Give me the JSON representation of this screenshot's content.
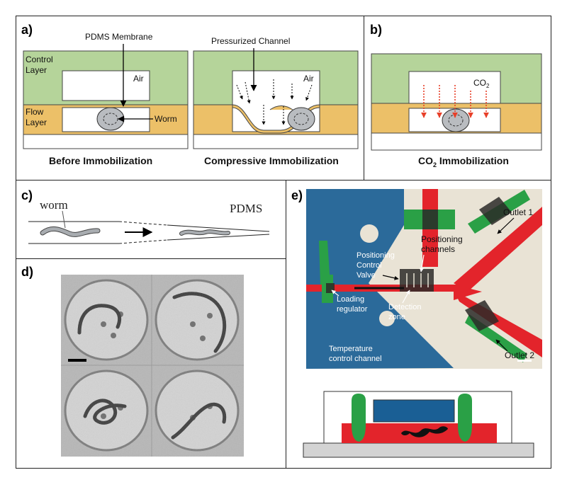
{
  "panels": {
    "a": {
      "label": "a)",
      "pdms_membrane": "PDMS Membrane",
      "control_layer": [
        "Control",
        "Layer"
      ],
      "flow_layer": [
        "Flow",
        "Layer"
      ],
      "air": "Air",
      "worm": "Worm",
      "pressurized_channel": "Pressurized Channel",
      "caption_left": "Before Immobilization",
      "caption_right": "Compressive Immobilization"
    },
    "b": {
      "label": "b)",
      "co2": "CO",
      "co2_sub": "2",
      "caption_main": "CO",
      "caption_sub": "2",
      "caption_rest": " Immobilization"
    },
    "c": {
      "label": "c)",
      "worm": "worm",
      "pdms": "PDMS"
    },
    "d": {
      "label": "d)"
    },
    "e": {
      "label": "e)",
      "outlet1": "Outlet 1",
      "outlet2": "Outlet 2",
      "positioning_channels": [
        "Positioning",
        "channels"
      ],
      "positioning_control_valve": [
        "Positioning",
        "Control",
        "Valve"
      ],
      "loading_regulator": [
        "Loading",
        "regulator"
      ],
      "detection_zone": [
        "Detection",
        "zone"
      ],
      "temperature_control": [
        "Temperature",
        "control channel"
      ]
    }
  },
  "colors": {
    "control_layer": "#b5d49a",
    "flow_layer": "#ecc068",
    "arrow_red": "#e8402a",
    "chip_red": "#e3242b",
    "chip_green": "#2aa046",
    "chip_blue": "#1a5f95"
  }
}
